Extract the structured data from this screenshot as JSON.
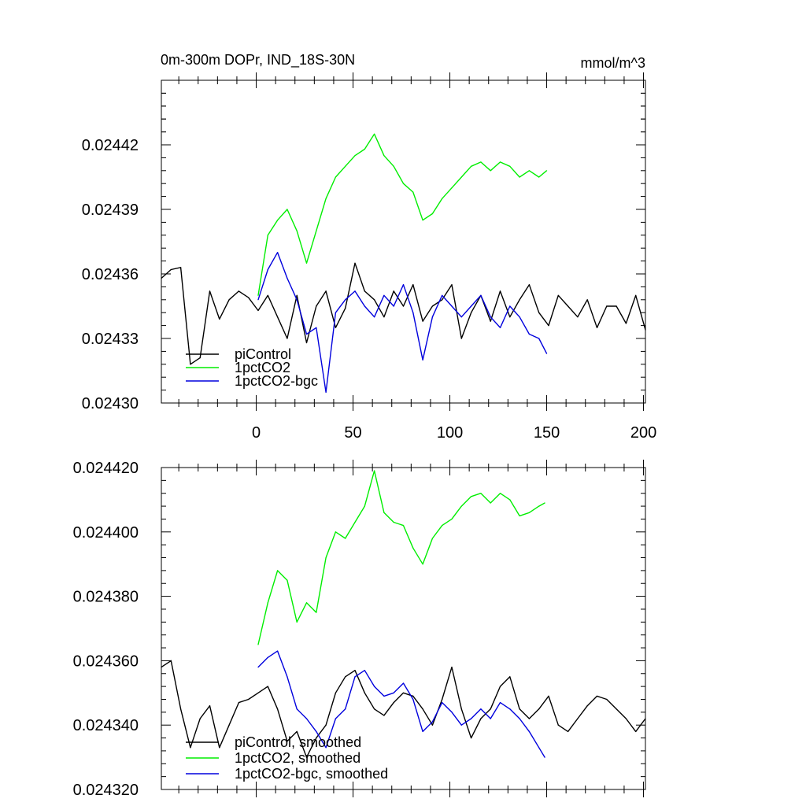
{
  "chart_data": [
    {
      "type": "line",
      "title": "0m-300m DOPr, IND_18S-30N",
      "units": "mmol/m^3",
      "xlim": [
        -49,
        201
      ],
      "ylim": [
        0.0243,
        0.02445
      ],
      "xticks": [
        0,
        50,
        100,
        150,
        200
      ],
      "xtick_labels": [
        "0",
        "50",
        "100",
        "150",
        "200"
      ],
      "yticks": [
        0.0243,
        0.02433,
        0.02436,
        0.02439,
        0.02442
      ],
      "ytick_labels": [
        "0.02430",
        "0.02433",
        "0.02436",
        "0.02439",
        "0.02442"
      ],
      "legend_position": "bottom-left",
      "series": [
        {
          "name": "piControl",
          "color": "#000000",
          "x": [
            -49,
            -44,
            -39,
            -34,
            -29,
            -24,
            -19,
            -14,
            -9,
            -4,
            1,
            6,
            11,
            16,
            21,
            26,
            31,
            36,
            41,
            46,
            51,
            56,
            61,
            66,
            71,
            76,
            81,
            86,
            91,
            96,
            101,
            106,
            111,
            116,
            121,
            126,
            131,
            136,
            141,
            146,
            151,
            156,
            161,
            166,
            171,
            176,
            181,
            186,
            191,
            196,
            201
          ],
          "values": [
            0.024358,
            0.024362,
            0.024363,
            0.024318,
            0.024321,
            0.024352,
            0.024339,
            0.024348,
            0.024352,
            0.024349,
            0.024343,
            0.02435,
            0.02434,
            0.02433,
            0.02435,
            0.024328,
            0.024345,
            0.024352,
            0.024335,
            0.024344,
            0.024365,
            0.024352,
            0.024348,
            0.02434,
            0.024352,
            0.024345,
            0.024355,
            0.024338,
            0.024345,
            0.024348,
            0.024355,
            0.02433,
            0.024342,
            0.02435,
            0.024338,
            0.024352,
            0.02434,
            0.024348,
            0.024355,
            0.024342,
            0.024336,
            0.02435,
            0.024345,
            0.02434,
            0.024348,
            0.024335,
            0.024345,
            0.024345,
            0.024337,
            0.02435,
            0.024334
          ]
        },
        {
          "name": "1pctCO2",
          "color": "#00ee00",
          "x": [
            1,
            6,
            11,
            16,
            21,
            26,
            31,
            36,
            41,
            46,
            51,
            56,
            61,
            66,
            71,
            76,
            81,
            86,
            91,
            96,
            101,
            106,
            111,
            116,
            121,
            126,
            131,
            136,
            141,
            146,
            150
          ],
          "values": [
            0.02435,
            0.024378,
            0.024385,
            0.02439,
            0.02438,
            0.024365,
            0.02438,
            0.024395,
            0.024405,
            0.02441,
            0.024415,
            0.024418,
            0.024425,
            0.024415,
            0.02441,
            0.024402,
            0.024398,
            0.024385,
            0.024388,
            0.024395,
            0.0244,
            0.024405,
            0.02441,
            0.024412,
            0.024408,
            0.024412,
            0.02441,
            0.024405,
            0.024408,
            0.024405,
            0.024408
          ]
        },
        {
          "name": "1pctCO2-bgc",
          "color": "#0000dd",
          "x": [
            1,
            6,
            11,
            16,
            21,
            26,
            31,
            36,
            41,
            46,
            51,
            56,
            61,
            66,
            71,
            76,
            81,
            86,
            91,
            96,
            101,
            106,
            111,
            116,
            121,
            126,
            131,
            136,
            141,
            146,
            150
          ],
          "values": [
            0.024348,
            0.024362,
            0.02437,
            0.024358,
            0.024348,
            0.024332,
            0.024335,
            0.024305,
            0.024342,
            0.024348,
            0.024352,
            0.024345,
            0.02434,
            0.02435,
            0.024345,
            0.024355,
            0.024342,
            0.02432,
            0.02434,
            0.02435,
            0.024345,
            0.02434,
            0.024345,
            0.02435,
            0.02434,
            0.024335,
            0.024345,
            0.02434,
            0.024332,
            0.02433,
            0.024323
          ]
        }
      ]
    },
    {
      "type": "line",
      "xlim": [
        -49,
        201
      ],
      "ylim": [
        0.02432,
        0.02442
      ],
      "xticks": [
        0,
        50,
        100,
        150,
        200
      ],
      "yticks": [
        0.02432,
        0.02434,
        0.02436,
        0.02438,
        0.0244,
        0.02442
      ],
      "ytick_labels": [
        "0.024320",
        "0.024340",
        "0.024360",
        "0.024380",
        "0.024400",
        "0.024420"
      ],
      "legend_position": "bottom-left",
      "series": [
        {
          "name": "piControl, smoothed",
          "color": "#000000",
          "x": [
            -49,
            -44,
            -39,
            -34,
            -29,
            -24,
            -19,
            -14,
            -9,
            -4,
            1,
            6,
            11,
            16,
            21,
            26,
            31,
            36,
            41,
            46,
            51,
            56,
            61,
            66,
            71,
            76,
            81,
            86,
            91,
            96,
            101,
            106,
            111,
            116,
            121,
            126,
            131,
            136,
            141,
            146,
            151,
            156,
            161,
            166,
            171,
            176,
            181,
            186,
            191,
            196,
            201
          ],
          "values": [
            0.024358,
            0.02436,
            0.024345,
            0.024333,
            0.024342,
            0.024346,
            0.024333,
            0.02434,
            0.024347,
            0.024348,
            0.02435,
            0.024352,
            0.024345,
            0.024335,
            0.024338,
            0.02433,
            0.024336,
            0.02434,
            0.02435,
            0.024355,
            0.024357,
            0.02435,
            0.024345,
            0.024343,
            0.024347,
            0.02435,
            0.024349,
            0.024345,
            0.02434,
            0.024348,
            0.024358,
            0.024345,
            0.024336,
            0.024342,
            0.024345,
            0.024352,
            0.024355,
            0.024345,
            0.024342,
            0.024345,
            0.024349,
            0.02434,
            0.024338,
            0.024342,
            0.024346,
            0.024349,
            0.024348,
            0.024345,
            0.024342,
            0.024338,
            0.024342
          ]
        },
        {
          "name": "1pctCO2, smoothed",
          "color": "#00ee00",
          "x": [
            1,
            6,
            11,
            16,
            21,
            26,
            31,
            36,
            41,
            46,
            51,
            56,
            61,
            66,
            71,
            76,
            81,
            86,
            91,
            96,
            101,
            106,
            111,
            116,
            121,
            126,
            131,
            136,
            141,
            146,
            149
          ],
          "values": [
            0.024365,
            0.024378,
            0.024388,
            0.024385,
            0.024372,
            0.024378,
            0.024375,
            0.024392,
            0.0244,
            0.024398,
            0.024403,
            0.024408,
            0.024419,
            0.024406,
            0.024403,
            0.024402,
            0.024395,
            0.02439,
            0.024398,
            0.024402,
            0.024404,
            0.024408,
            0.024411,
            0.024412,
            0.024409,
            0.024412,
            0.02441,
            0.024405,
            0.024406,
            0.024408,
            0.024409
          ]
        },
        {
          "name": "1pctCO2-bgc, smoothed",
          "color": "#0000dd",
          "x": [
            1,
            6,
            11,
            16,
            21,
            26,
            31,
            36,
            41,
            46,
            51,
            56,
            61,
            66,
            71,
            76,
            81,
            86,
            91,
            96,
            101,
            106,
            111,
            116,
            121,
            126,
            131,
            136,
            141,
            146,
            149
          ],
          "values": [
            0.024358,
            0.024361,
            0.024363,
            0.024355,
            0.024345,
            0.024342,
            0.024338,
            0.024333,
            0.024342,
            0.024345,
            0.024355,
            0.024357,
            0.024352,
            0.024349,
            0.02435,
            0.024353,
            0.024348,
            0.024338,
            0.024341,
            0.024347,
            0.024344,
            0.02434,
            0.024342,
            0.024345,
            0.024342,
            0.024347,
            0.024345,
            0.024342,
            0.024338,
            0.024333,
            0.02433
          ]
        }
      ]
    }
  ]
}
